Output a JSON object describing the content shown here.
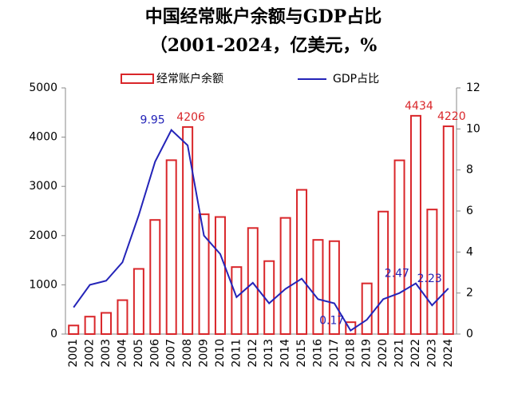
{
  "chart_data": {
    "type": "bar_line",
    "title": "中国经常账户余额与GDP占比",
    "subtitle": "（2001-2024，亿美元，%",
    "categories": [
      "2001",
      "2002",
      "2003",
      "2004",
      "2005",
      "2006",
      "2007",
      "2008",
      "2009",
      "2010",
      "2011",
      "2012",
      "2013",
      "2014",
      "2015",
      "2016",
      "2017",
      "2018",
      "2019",
      "2020",
      "2021",
      "2022",
      "2023",
      "2024"
    ],
    "series": [
      {
        "name": "经常账户余额",
        "color": "#d9262a",
        "type": "bar",
        "values": [
          174,
          354,
          431,
          689,
          1324,
          2318,
          3532,
          4206,
          2433,
          2378,
          1361,
          2154,
          1482,
          2360,
          2930,
          1913,
          1887,
          241,
          1029,
          2488,
          3529,
          4434,
          2530,
          4220
        ],
        "value_labels": [
          null,
          null,
          null,
          null,
          null,
          null,
          null,
          "4206",
          null,
          null,
          null,
          null,
          null,
          null,
          null,
          null,
          null,
          null,
          null,
          null,
          null,
          "4434",
          null,
          "4220"
        ]
      },
      {
        "name": "GDP占比",
        "color": "#2424b8",
        "type": "line",
        "axis": "y2",
        "values": [
          1.3,
          2.4,
          2.6,
          3.5,
          5.8,
          8.4,
          9.95,
          9.2,
          4.8,
          3.9,
          1.8,
          2.5,
          1.5,
          2.2,
          2.7,
          1.7,
          1.5,
          0.17,
          0.7,
          1.7,
          2.0,
          2.47,
          1.4,
          2.23
        ],
        "value_labels": [
          null,
          null,
          null,
          null,
          null,
          null,
          "9.95",
          null,
          null,
          null,
          null,
          null,
          null,
          null,
          null,
          null,
          null,
          "0.17",
          null,
          null,
          null,
          "2.47",
          null,
          "2.23"
        ]
      }
    ],
    "ylim": [
      0,
      5000
    ],
    "yticks": [
      0,
      1000,
      2000,
      3000,
      4000,
      5000
    ],
    "y2lim": [
      0,
      12
    ],
    "y2ticks": [
      0,
      2,
      4,
      6,
      8,
      10,
      12
    ],
    "legend": "top"
  }
}
